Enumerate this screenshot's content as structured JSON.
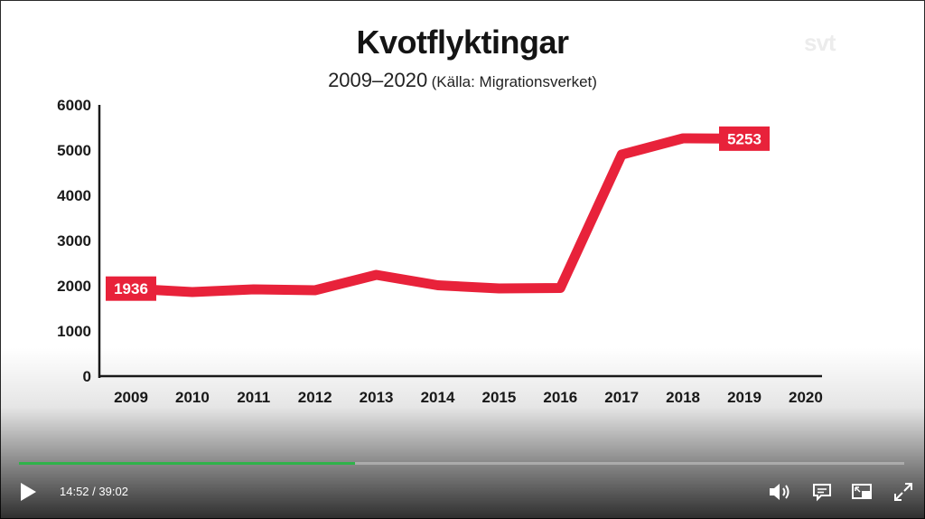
{
  "title": "Kvotflyktingar",
  "subtitle_years": "2009–2020",
  "subtitle_source": "(Källa: Migrationsverket)",
  "watermark": "svt",
  "chart_data": {
    "type": "line",
    "title": "Kvotflyktingar",
    "subtitle": "2009–2020 (Källa: Migrationsverket)",
    "xlabel": "",
    "ylabel": "",
    "categories": [
      "2009",
      "2010",
      "2011",
      "2012",
      "2013",
      "2014",
      "2015",
      "2016",
      "2017",
      "2018",
      "2019",
      "2020"
    ],
    "series": [
      {
        "values": [
          1936,
          1860,
          1920,
          1900,
          2240,
          2010,
          1940,
          1950,
          4900,
          5260,
          5253,
          null
        ],
        "color": "#e8223a"
      }
    ],
    "yticks": [
      0,
      1000,
      2000,
      3000,
      4000,
      5000,
      6000
    ],
    "ylim": [
      0,
      6000
    ],
    "grid": false,
    "data_labels": [
      {
        "category": "2009",
        "text": "1936"
      },
      {
        "category": "2019",
        "text": "5253"
      }
    ]
  },
  "player": {
    "progress": 0.38,
    "current_time": "14:52",
    "separator": " / ",
    "duration": "39:02",
    "icons": {
      "play": "play-icon",
      "volume": "volume-icon",
      "subtitles": "subtitles-icon",
      "pip": "picture-in-picture-icon",
      "fullscreen": "fullscreen-icon"
    },
    "accent_color": "#2fb34a"
  }
}
